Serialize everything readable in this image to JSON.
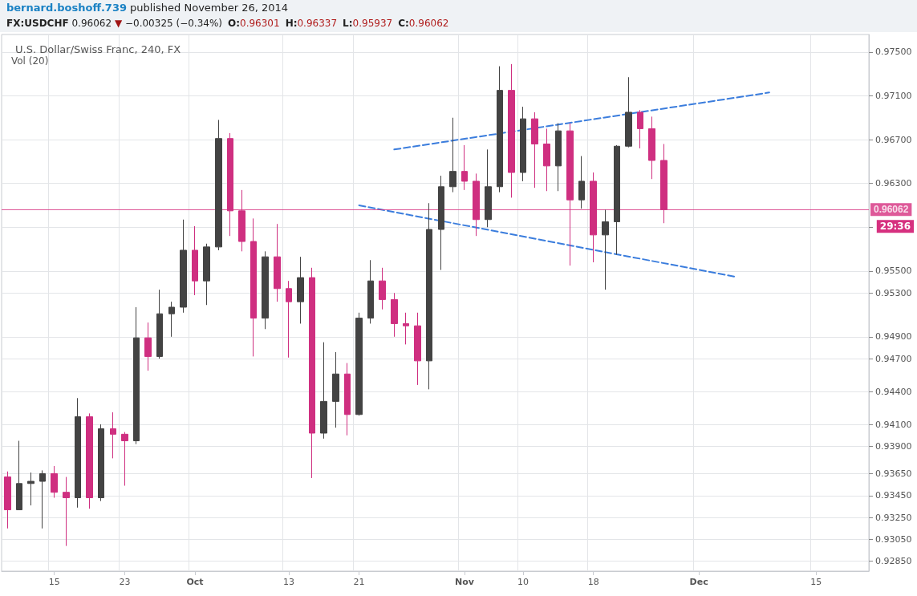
{
  "chart_data": {
    "type": "candlestick",
    "title": "U.S. Dollar/Swiss Franc, 240, FX",
    "annotations": [
      "bernard.boshoff.739 published November 26, 2014",
      "FX:USDCHF 0.96062 ▼ −0.00325 (−0.34%)",
      "O:0.96301",
      "H:0.96337",
      "L:0.95937",
      "C:0.96062",
      "Vol (20)",
      "29:36"
    ],
    "categories": [
      null,
      null,
      null,
      null,
      "15",
      null,
      null,
      null,
      null,
      null,
      "23",
      null,
      null,
      null,
      null,
      null,
      "Oct",
      null,
      null,
      null,
      null,
      null,
      null,
      null,
      "13",
      null,
      null,
      null,
      null,
      null,
      "21",
      null,
      null,
      null,
      null,
      null,
      null,
      null,
      null,
      "Nov",
      null,
      null,
      null,
      null,
      "10",
      null,
      null,
      null,
      null,
      null,
      "18",
      null,
      null,
      null,
      null,
      null,
      null,
      null,
      null,
      "Dec",
      null,
      null,
      null,
      null,
      null,
      null,
      null,
      null,
      null,
      "15",
      null,
      null,
      null,
      null
    ],
    "series": [
      {
        "type": "candlestick",
        "colors": [
          "#cf2f80",
          "#434343",
          "#434343",
          "#434343",
          "#cf2f80",
          "#cf2f80",
          "#434343",
          "#cf2f80",
          "#434343",
          "#cf2f80",
          "#cf2f80",
          "#434343",
          "#cf2f80",
          "#434343",
          "#434343",
          "#434343",
          "#cf2f80",
          "#434343",
          "#434343",
          "#cf2f80",
          "#cf2f80",
          "#cf2f80",
          "#434343",
          "#cf2f80",
          "#cf2f80",
          "#434343",
          "#cf2f80",
          "#434343",
          "#434343",
          "#cf2f80",
          "#434343",
          "#434343",
          "#cf2f80",
          "#cf2f80",
          "#cf2f80",
          "#cf2f80",
          "#434343",
          "#434343",
          "#434343",
          "#cf2f80",
          "#cf2f80",
          "#434343",
          "#434343",
          "#cf2f80",
          "#434343",
          "#cf2f80",
          "#cf2f80",
          "#434343",
          "#cf2f80",
          "#434343",
          "#cf2f80",
          "#434343",
          "#434343",
          "#434343",
          "#cf2f80",
          "#cf2f80",
          "#cf2f80",
          null,
          null,
          null,
          null,
          null,
          null,
          null,
          null,
          null,
          null,
          null,
          null,
          null,
          null,
          null,
          null,
          null
        ],
        "ohlc": [
          [
            0.9362,
            0.9367,
            0.9315,
            0.9332
          ],
          [
            0.9332,
            0.9395,
            0.9332,
            0.9356
          ],
          [
            0.9356,
            0.9366,
            0.9336,
            0.9358
          ],
          [
            0.9358,
            0.9368,
            0.9315,
            0.9365
          ],
          [
            0.9365,
            0.9372,
            0.9343,
            0.9348
          ],
          [
            0.9348,
            0.9362,
            0.9299,
            0.9343
          ],
          [
            0.9343,
            0.9434,
            0.9334,
            0.9417
          ],
          [
            0.9417,
            0.942,
            0.9333,
            0.9343
          ],
          [
            0.9343,
            0.941,
            0.934,
            0.9406
          ],
          [
            0.9406,
            0.9421,
            0.9379,
            0.9401
          ],
          [
            0.9401,
            0.9403,
            0.9354,
            0.9395
          ],
          [
            0.9395,
            0.9517,
            0.9392,
            0.9489
          ],
          [
            0.9489,
            0.9503,
            0.9459,
            0.9472
          ],
          [
            0.9472,
            0.9533,
            0.947,
            0.9511
          ],
          [
            0.9511,
            0.9522,
            0.949,
            0.9517
          ],
          [
            0.9517,
            0.9597,
            0.9512,
            0.9569
          ],
          [
            0.9569,
            0.9591,
            0.9528,
            0.9541
          ],
          [
            0.9541,
            0.9575,
            0.9519,
            0.9572
          ],
          [
            0.9572,
            0.9688,
            0.9569,
            0.9671
          ],
          [
            0.9671,
            0.9676,
            0.9582,
            0.9605
          ],
          [
            0.9605,
            0.9624,
            0.9568,
            0.9577
          ],
          [
            0.9577,
            0.9598,
            0.9472,
            0.9507
          ],
          [
            0.9507,
            0.9568,
            0.9497,
            0.9563
          ],
          [
            0.9563,
            0.9593,
            0.9522,
            0.9534
          ],
          [
            0.9534,
            0.9541,
            0.9471,
            0.9522
          ],
          [
            0.9522,
            0.9563,
            0.9502,
            0.9544
          ],
          [
            0.9544,
            0.9553,
            0.9361,
            0.9402
          ],
          [
            0.9402,
            0.9485,
            0.9397,
            0.9431
          ],
          [
            0.9431,
            0.9476,
            0.9407,
            0.9456
          ],
          [
            0.9456,
            0.9466,
            0.94,
            0.9419
          ],
          [
            0.9419,
            0.9512,
            0.9418,
            0.9507
          ],
          [
            0.9507,
            0.956,
            0.9502,
            0.9541
          ],
          [
            0.9541,
            0.9553,
            0.9515,
            0.9524
          ],
          [
            0.9524,
            0.953,
            0.949,
            0.9502
          ],
          [
            0.9502,
            0.9512,
            0.9483,
            0.95
          ],
          [
            0.95,
            0.9512,
            0.9446,
            0.9468
          ],
          [
            0.9468,
            0.9612,
            0.9442,
            0.9588
          ],
          [
            0.9588,
            0.9637,
            0.9551,
            0.9627
          ],
          [
            0.9627,
            0.969,
            0.9622,
            0.9641
          ],
          [
            0.9641,
            0.9665,
            0.9624,
            0.9632
          ],
          [
            0.9632,
            0.9639,
            0.9582,
            0.9597
          ],
          [
            0.9597,
            0.9661,
            0.959,
            0.9627
          ],
          [
            0.9627,
            0.9737,
            0.9622,
            0.9715
          ],
          [
            0.9715,
            0.9739,
            0.9617,
            0.964
          ],
          [
            0.964,
            0.97,
            0.9632,
            0.9689
          ],
          [
            0.9689,
            0.9695,
            0.9626,
            0.9666
          ],
          [
            0.9666,
            0.968,
            0.9623,
            0.9646
          ],
          [
            0.9646,
            0.9685,
            0.9623,
            0.9678
          ],
          [
            0.9678,
            0.9685,
            0.9555,
            0.9615
          ],
          [
            0.9615,
            0.9655,
            0.9607,
            0.9632
          ],
          [
            0.9632,
            0.964,
            0.9558,
            0.9583
          ],
          [
            0.9583,
            0.9606,
            0.9533,
            0.9595
          ],
          [
            0.9595,
            0.9665,
            0.9565,
            0.9664
          ],
          [
            0.9664,
            0.9727,
            0.9663,
            0.9695
          ],
          [
            0.9695,
            0.9697,
            0.9662,
            0.968
          ],
          [
            0.968,
            0.9691,
            0.9634,
            0.9651
          ],
          [
            0.9651,
            0.9666,
            0.95937,
            0.96062
          ],
          null,
          null,
          null,
          null,
          null,
          null,
          null,
          null,
          null,
          null,
          null,
          null,
          null,
          null,
          null,
          null,
          null
        ]
      },
      {
        "type": "line",
        "color": "#3b7ddd",
        "line_style": "dashed",
        "values": [
          null,
          null,
          null,
          null,
          null,
          null,
          null,
          null,
          null,
          null,
          null,
          null,
          null,
          null,
          null,
          null,
          null,
          null,
          null,
          null,
          null,
          null,
          null,
          null,
          null,
          null,
          null,
          null,
          null,
          null,
          null,
          null,
          null,
          0.9661,
          null,
          null,
          null,
          null,
          null,
          null,
          null,
          null,
          null,
          null,
          null,
          null,
          null,
          null,
          null,
          null,
          null,
          null,
          null,
          null,
          null,
          null,
          null,
          null,
          null,
          null,
          null,
          null,
          null,
          null,
          null,
          0.9713,
          null,
          null,
          null,
          null,
          null,
          null,
          null,
          null
        ]
      },
      {
        "type": "line",
        "color": "#3b7ddd",
        "line_style": "dashed",
        "values": [
          null,
          null,
          null,
          null,
          null,
          null,
          null,
          null,
          null,
          null,
          null,
          null,
          null,
          null,
          null,
          null,
          null,
          null,
          null,
          null,
          null,
          null,
          null,
          null,
          null,
          null,
          null,
          null,
          null,
          null,
          0.961,
          null,
          null,
          null,
          null,
          null,
          null,
          null,
          null,
          null,
          null,
          null,
          null,
          null,
          null,
          null,
          null,
          null,
          null,
          null,
          null,
          null,
          null,
          null,
          null,
          null,
          null,
          null,
          null,
          null,
          null,
          null,
          0.9545,
          null,
          null,
          null,
          null,
          null,
          null,
          null,
          null,
          null,
          null,
          null
        ]
      }
    ],
    "marker": "none",
    "ylim": [
      0.9276,
      0.9766
    ],
    "yticks": [
      {
        "value": 0.9285,
        "label": "0.92850"
      },
      {
        "value": 0.9305,
        "label": "0.93050"
      },
      {
        "value": 0.9325,
        "label": "0.93250"
      },
      {
        "value": 0.9345,
        "label": "0.93450"
      },
      {
        "value": 0.9365,
        "label": "0.93650"
      },
      {
        "value": 0.939,
        "label": "0.93900"
      },
      {
        "value": 0.941,
        "label": "0.94100"
      },
      {
        "value": 0.944,
        "label": "0.94400"
      },
      {
        "value": 0.947,
        "label": "0.94700"
      },
      {
        "value": 0.949,
        "label": "0.94900"
      },
      {
        "value": 0.953,
        "label": "0.95300"
      },
      {
        "value": 0.955,
        "label": "0.95500"
      },
      {
        "value": 0.959,
        "label": null
      },
      {
        "value": 0.963,
        "label": "0.96300"
      },
      {
        "value": 0.967,
        "label": "0.96700"
      },
      {
        "value": 0.971,
        "label": "0.97100"
      },
      {
        "value": 0.975,
        "label": "0.97500"
      }
    ],
    "ref_lines": [
      {
        "axis": "y",
        "value": 0.96062,
        "label": "0.96062",
        "color": "#d6307f"
      }
    ],
    "grid": true
  }
}
